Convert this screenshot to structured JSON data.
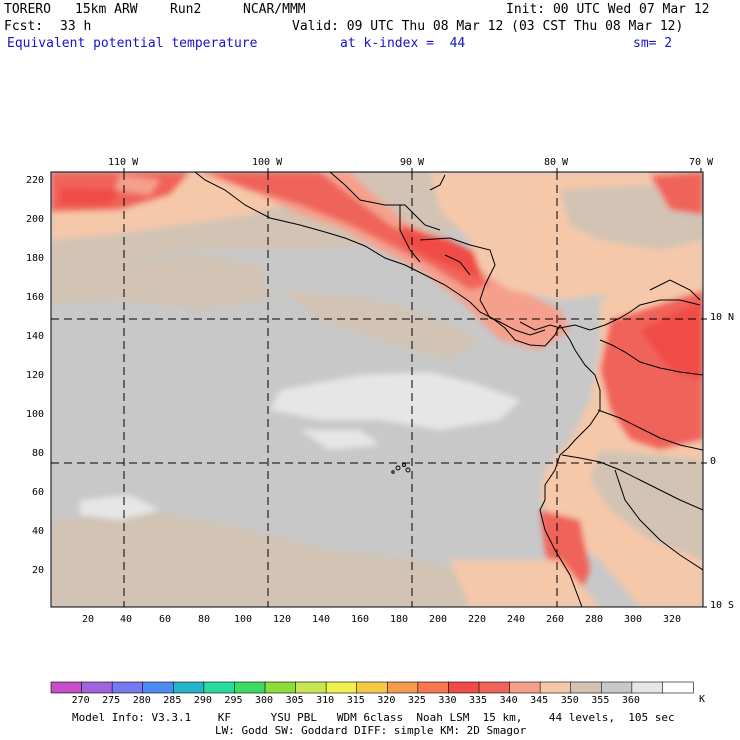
{
  "header": {
    "model": "TORERO",
    "resolution": "15km ARW",
    "run": "Run2",
    "org": "NCAR/MMM",
    "init": "Init: 00 UTC Wed 07 Mar 12",
    "fcst_label": "Fcst:",
    "fcst_value": "33 h",
    "valid": "Valid: 09 UTC Thu 08 Mar 12 (03 CST Thu 08 Mar 12)",
    "field": "Equivalent potential temperature",
    "level": "at k-index =  44",
    "smooth": "sm= 2"
  },
  "map": {
    "lon_labels": [
      "110 W",
      "100 W",
      "90 W",
      "80 W",
      "70 W"
    ],
    "lat_labels": [
      "10 N",
      "0",
      "10 S"
    ],
    "y_ticks": [
      "220",
      "200",
      "180",
      "160",
      "140",
      "120",
      "100",
      "80",
      "60",
      "40",
      "20"
    ],
    "x_ticks": [
      "20",
      "40",
      "60",
      "80",
      "100",
      "120",
      "140",
      "160",
      "180",
      "200",
      "220",
      "240",
      "260",
      "280",
      "300",
      "320"
    ]
  },
  "colorbar": {
    "labels": [
      "270",
      "275",
      "280",
      "285",
      "290",
      "295",
      "300",
      "305",
      "310",
      "315",
      "320",
      "325",
      "330",
      "335",
      "340",
      "345",
      "350",
      "355",
      "360"
    ],
    "unit": "K",
    "colors": [
      "#c84cc8",
      "#a064dc",
      "#7878f0",
      "#4c8cf0",
      "#28b4c8",
      "#28dca0",
      "#3cdc64",
      "#8cdc3c",
      "#c8e650",
      "#f0f050",
      "#f5c846",
      "#f59b50",
      "#f57850",
      "#f04b46",
      "#f0645a",
      "#f5a08c",
      "#f5c8aa",
      "#d2c3b4",
      "#c8c8c8",
      "#e6e6e6",
      "#ffffff"
    ]
  },
  "footer": {
    "line1": "Model Info: V3.3.1    KF      YSU PBL   WDM 6class  Noah LSM  15 km,    44 levels,  105 sec",
    "line2": "LW: Godd SW: Goddard DIFF: simple KM: 2D Smagor"
  }
}
